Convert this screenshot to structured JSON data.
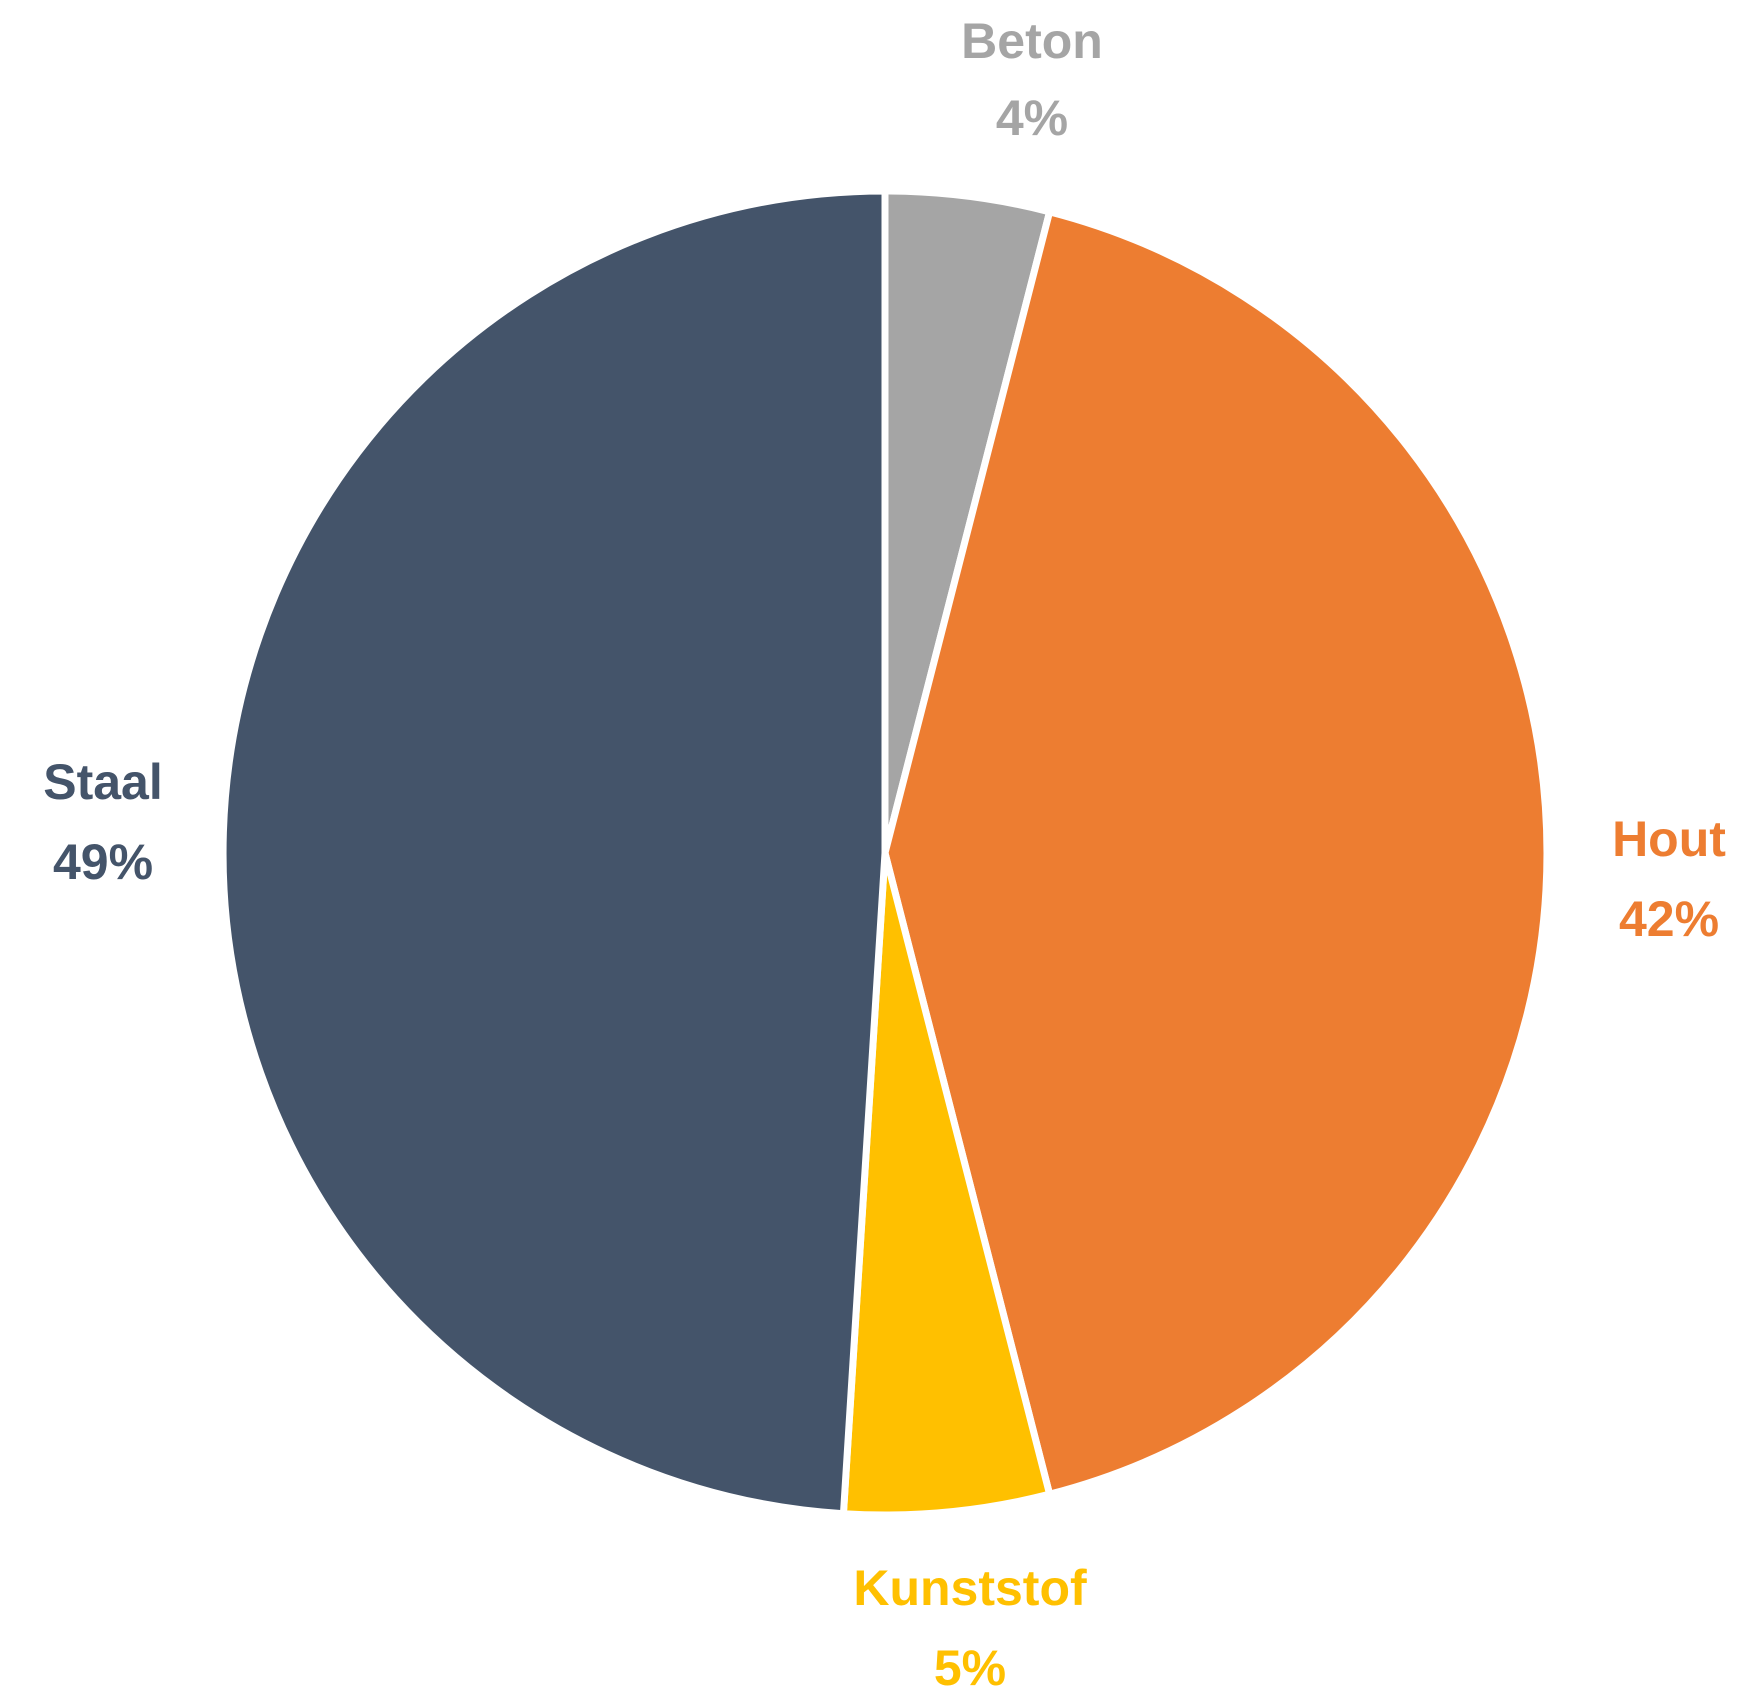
{
  "chart_data": {
    "type": "pie",
    "start_angle_deg": 0,
    "direction": "clockwise",
    "slices": [
      {
        "label": "Beton",
        "value": 4,
        "value_label": "4%",
        "color": "#a5a5a5"
      },
      {
        "label": "Hout",
        "value": 42,
        "value_label": "42%",
        "color": "#ed7d31"
      },
      {
        "label": "Kunststof",
        "value": 5,
        "value_label": "5%",
        "color": "#ffc000"
      },
      {
        "label": "Staal",
        "value": 49,
        "value_label": "49%",
        "color": "#44546a"
      }
    ],
    "legend": "none",
    "data_labels": "outside"
  }
}
